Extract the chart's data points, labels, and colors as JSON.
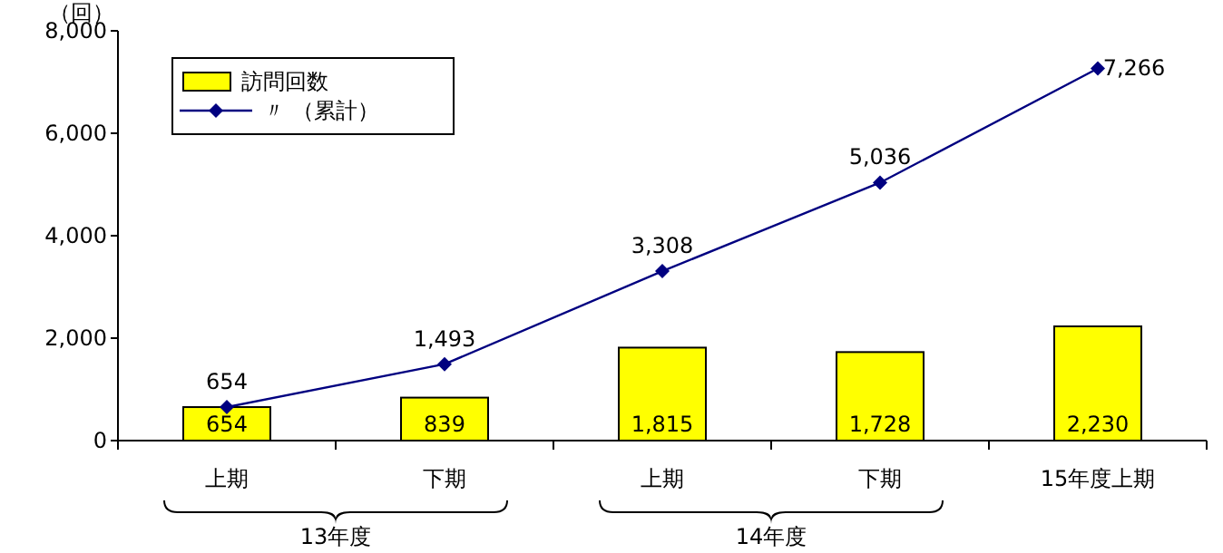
{
  "chart_data": {
    "type": "bar",
    "ylabel": "（回）",
    "categories": [
      "上期",
      "下期",
      "上期",
      "下期",
      "15年度上期"
    ],
    "series": [
      {
        "name": "訪問回数",
        "color": "#ffff00",
        "values": [
          654,
          839,
          1815,
          1728,
          2230
        ],
        "value_labels": [
          "654",
          "839",
          "1,815",
          "1,728",
          "2,230"
        ]
      },
      {
        "type": "line",
        "name": "〃 （累計）",
        "color": "#000080",
        "marker": "diamond",
        "values": [
          654,
          1493,
          3308,
          5036,
          7266
        ],
        "value_labels": [
          "654",
          "1,493",
          "3,308",
          "5,036",
          "7,266"
        ]
      }
    ],
    "ylim": [
      0,
      8000
    ],
    "yticks": [
      {
        "value": 0,
        "label": "0"
      },
      {
        "value": 2000,
        "label": "2,000"
      },
      {
        "value": 4000,
        "label": "4,000"
      },
      {
        "value": 6000,
        "label": "6,000"
      },
      {
        "value": 8000,
        "label": "8,000"
      }
    ],
    "legend": "top left",
    "grid": false,
    "annotations": [
      "13年度",
      "14年度"
    ]
  }
}
